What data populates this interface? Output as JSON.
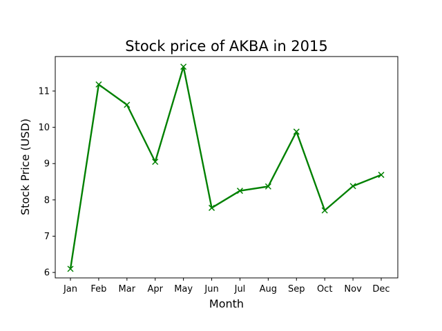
{
  "chart_data": {
    "type": "line",
    "title": "Stock price of AKBA in 2015",
    "xlabel": "Month",
    "ylabel": "Stock Price (USD)",
    "categories": [
      "Jan",
      "Feb",
      "Mar",
      "Apr",
      "May",
      "Jun",
      "Jul",
      "Aug",
      "Sep",
      "Oct",
      "Nov",
      "Dec"
    ],
    "values": [
      6.1,
      11.18,
      10.62,
      9.05,
      11.67,
      7.78,
      8.25,
      8.37,
      9.88,
      7.71,
      8.38,
      8.69
    ],
    "ylim": [
      5.85,
      11.95
    ],
    "yticks": [
      6,
      7,
      8,
      9,
      10,
      11
    ],
    "grid": false,
    "color": "#008000",
    "marker": "x-mark"
  }
}
